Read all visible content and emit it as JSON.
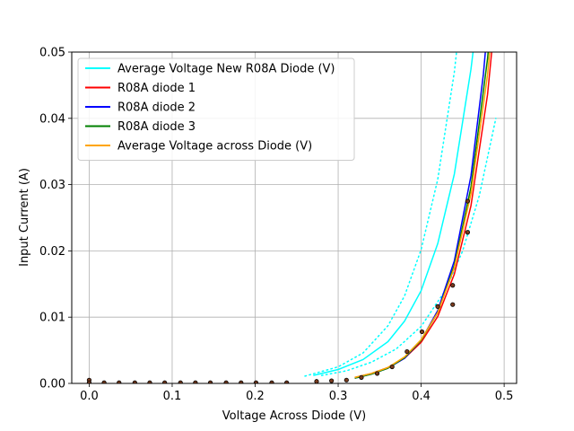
{
  "chart_data": {
    "type": "line",
    "title": "",
    "xlabel": "Voltage Across Diode (V)",
    "ylabel": "Input Current (A)",
    "xlim": [
      -0.021,
      0.515
    ],
    "ylim": [
      0,
      0.05
    ],
    "xticks": [
      0.0,
      0.1,
      0.2,
      0.3,
      0.4,
      0.5
    ],
    "yticks": [
      0.0,
      0.01,
      0.02,
      0.03,
      0.04,
      0.05
    ],
    "xtick_labels": [
      "0.0",
      "0.1",
      "0.2",
      "0.3",
      "0.4",
      "0.5"
    ],
    "ytick_labels": [
      "0.00",
      "0.01",
      "0.02",
      "0.03",
      "0.04",
      "0.05"
    ],
    "grid": true,
    "legend_position": "top-left",
    "series": [
      {
        "name": "Average Voltage New R08A Diode (V)",
        "color": "#00ffff",
        "style": "solid",
        "x": [
          0.27,
          0.3,
          0.33,
          0.36,
          0.38,
          0.4,
          0.42,
          0.44,
          0.46,
          0.475
        ],
        "y": [
          0.0012,
          0.0021,
          0.0036,
          0.0063,
          0.0094,
          0.014,
          0.0211,
          0.0316,
          0.0474,
          0.0628
        ]
      },
      {
        "name": "",
        "color": "#00ffff",
        "style": "dotted",
        "x": [
          0.26,
          0.3,
          0.33,
          0.36,
          0.38,
          0.4,
          0.42,
          0.44,
          0.452
        ],
        "y": [
          0.0011,
          0.0025,
          0.0046,
          0.0087,
          0.0132,
          0.0202,
          0.0308,
          0.047,
          0.0606
        ]
      },
      {
        "name": "",
        "color": "#00ffff",
        "style": "dotted",
        "x": [
          0.28,
          0.31,
          0.34,
          0.37,
          0.4,
          0.43,
          0.45,
          0.47,
          0.49
        ],
        "y": [
          0.0012,
          0.0019,
          0.0032,
          0.0052,
          0.0086,
          0.0142,
          0.02,
          0.0283,
          0.04
        ]
      },
      {
        "name": "R08A diode 1",
        "color": "#ff0000",
        "style": "solid",
        "x": [
          0.32,
          0.34,
          0.36,
          0.38,
          0.4,
          0.42,
          0.44,
          0.46,
          0.48,
          0.495
        ],
        "y": [
          0.0009,
          0.0015,
          0.0024,
          0.0038,
          0.0062,
          0.0101,
          0.0165,
          0.0268,
          0.0436,
          0.0629
        ]
      },
      {
        "name": "R08A diode 2",
        "color": "#0000ff",
        "style": "solid",
        "x": [
          0.32,
          0.34,
          0.36,
          0.38,
          0.4,
          0.42,
          0.44,
          0.46,
          0.475,
          0.485
        ],
        "y": [
          0.0008,
          0.0014,
          0.0023,
          0.0038,
          0.0065,
          0.011,
          0.0185,
          0.0313,
          0.0467,
          0.0608
        ]
      },
      {
        "name": "R08A diode 3",
        "color": "#008000",
        "style": "solid",
        "x": [
          0.32,
          0.34,
          0.36,
          0.38,
          0.4,
          0.42,
          0.44,
          0.46,
          0.48,
          0.49
        ],
        "y": [
          0.0008,
          0.0014,
          0.0023,
          0.0039,
          0.0065,
          0.0107,
          0.0178,
          0.0296,
          0.049,
          0.063
        ]
      },
      {
        "name": "Average Voltage across Diode (V)",
        "color": "#ffa500",
        "style": "solid",
        "x": [
          0.32,
          0.34,
          0.36,
          0.38,
          0.4,
          0.42,
          0.44,
          0.46,
          0.48,
          0.493
        ],
        "y": [
          0.0009,
          0.0015,
          0.0024,
          0.004,
          0.0066,
          0.0107,
          0.0175,
          0.0286,
          0.0466,
          0.0637
        ]
      }
    ],
    "scatter_points": {
      "color": "#000000",
      "x": [
        0.0,
        0.0,
        0.018,
        0.036,
        0.055,
        0.073,
        0.091,
        0.11,
        0.128,
        0.146,
        0.165,
        0.183,
        0.201,
        0.22,
        0.238,
        0.274,
        0.292,
        0.31,
        0.328,
        0.347,
        0.365,
        0.383,
        0.401,
        0.42,
        0.438,
        0.438,
        0.456,
        0.456
      ],
      "y": [
        0.0005,
        0.0001,
        0.0001,
        0.0001,
        0.0001,
        0.0001,
        0.0001,
        0.0001,
        0.0001,
        0.0001,
        0.0001,
        0.0001,
        0.0001,
        0.0001,
        0.0001,
        0.0003,
        0.0004,
        0.0005,
        0.0009,
        0.0015,
        0.0025,
        0.0048,
        0.0078,
        0.0116,
        0.0119,
        0.0148,
        0.0228,
        0.0275
      ]
    }
  }
}
